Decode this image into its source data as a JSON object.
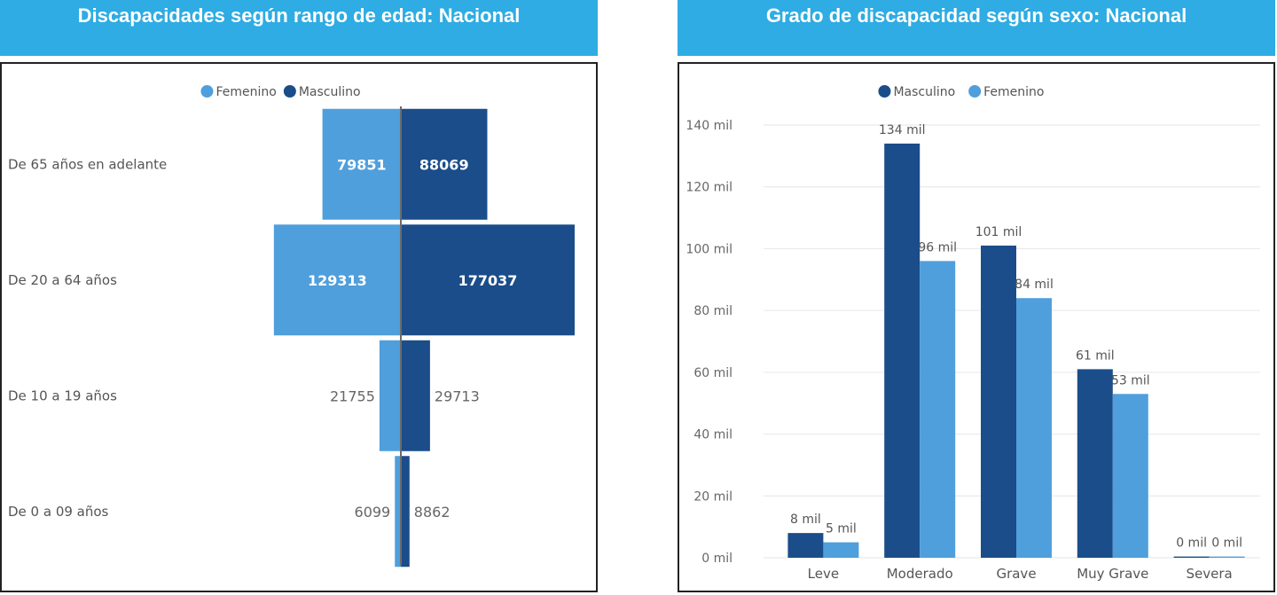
{
  "colors": {
    "header_bg": "#2eace3",
    "masculino": "#1a4d8a",
    "femenino": "#4f9fdc",
    "divider": "#6b6b6b"
  },
  "left": {
    "header": "Discapacidades según rango de edad: Nacional",
    "legend": [
      {
        "label": "Femenino",
        "color": "#4f9fdc"
      },
      {
        "label": "Masculino",
        "color": "#1a4d8a"
      }
    ]
  },
  "right": {
    "header": "Grado de discapacidad según sexo: Nacional",
    "legend": [
      {
        "label": "Masculino",
        "color": "#1a4d8a"
      },
      {
        "label": "Femenino",
        "color": "#4f9fdc"
      }
    ]
  },
  "chart_data": [
    {
      "type": "bar",
      "orientation": "horizontal-butterfly",
      "categories": [
        "De 65 años en adelante",
        "De 20 a 64 años",
        "De 10 a 19 años",
        "De 0 a 09 años"
      ],
      "series": [
        {
          "name": "Femenino",
          "values": [
            79851,
            129313,
            21755,
            6099
          ],
          "labels": [
            "79851",
            "129313",
            "21755",
            "6099"
          ]
        },
        {
          "name": "Masculino",
          "values": [
            88069,
            177037,
            29713,
            8862
          ],
          "labels": [
            "88069",
            "177037",
            "29713",
            "8862"
          ]
        }
      ],
      "legend": "top-center"
    },
    {
      "type": "bar",
      "categories": [
        "Leve",
        "Moderado",
        "Grave",
        "Muy Grave",
        "Severa"
      ],
      "series": [
        {
          "name": "Masculino",
          "values": [
            8000,
            134000,
            101000,
            61000,
            400
          ],
          "labels": [
            "8 mil",
            "134 mil",
            "101 mil",
            "61 mil",
            "0 mil"
          ]
        },
        {
          "name": "Femenino",
          "values": [
            5000,
            96000,
            84000,
            53000,
            400
          ],
          "labels": [
            "5 mil",
            "96 mil",
            "84 mil",
            "53 mil",
            "0 mil"
          ]
        }
      ],
      "yticks": [
        "0 mil",
        "20 mil",
        "40 mil",
        "60 mil",
        "80 mil",
        "100 mil",
        "120 mil",
        "140 mil"
      ],
      "ylim": [
        0,
        140000
      ],
      "grid": true,
      "legend": "top-center"
    }
  ]
}
